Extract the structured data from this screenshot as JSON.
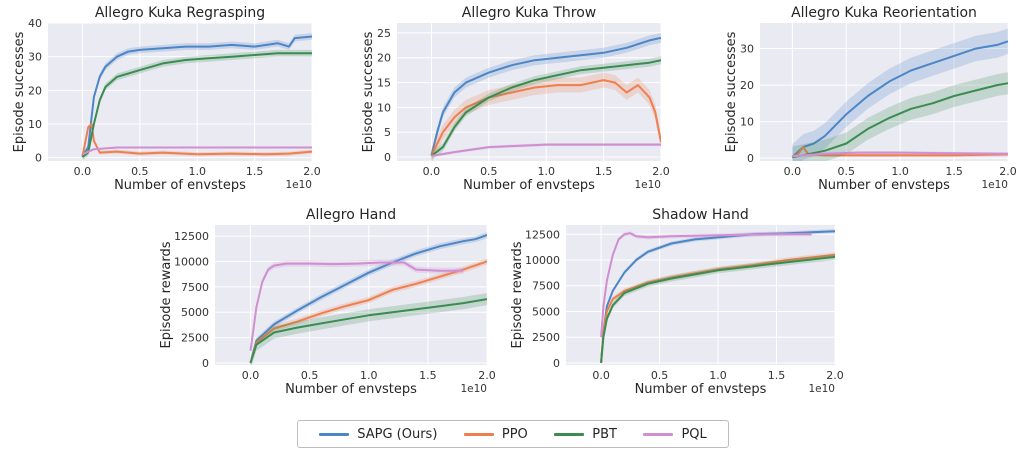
{
  "legend": {
    "items": [
      {
        "label": "SAPG (Ours)",
        "color": "#4c86c6"
      },
      {
        "label": "PPO",
        "color": "#ee7f4f"
      },
      {
        "label": "PBT",
        "color": "#3b8c51"
      },
      {
        "label": "PQL",
        "color": "#cf8fd0"
      }
    ]
  },
  "chart_data": [
    {
      "type": "line",
      "title": "Allegro Kuka Regrasping",
      "xlabel": "Number of envsteps",
      "ylabel": "Episode successes",
      "x_scale_label": "1e10",
      "xlim": [
        -0.3,
        2.0
      ],
      "ylim": [
        -1,
        40
      ],
      "xticks": [
        "0.0",
        "0.5",
        "1.0",
        "1.5",
        "2.0"
      ],
      "yticks": [
        "0",
        "10",
        "20",
        "30",
        "40"
      ],
      "x_tick_values": [
        0,
        0.5,
        1.0,
        1.5,
        2.0
      ],
      "y_tick_values": [
        0,
        10,
        20,
        30,
        40
      ],
      "grid": true,
      "series": [
        {
          "name": "SAPG (Ours)",
          "x": [
            0,
            0.05,
            0.1,
            0.15,
            0.2,
            0.3,
            0.4,
            0.5,
            0.7,
            0.9,
            1.1,
            1.3,
            1.5,
            1.7,
            1.8,
            1.85,
            2.0
          ],
          "y": [
            0.5,
            3,
            18,
            24,
            27,
            30,
            31.5,
            32,
            32.5,
            33,
            33,
            33.5,
            33,
            34,
            33,
            35.5,
            36
          ],
          "band": 1.0
        },
        {
          "name": "PPO",
          "x": [
            0,
            0.05,
            0.08,
            0.1,
            0.15,
            0.3,
            0.5,
            0.7,
            1.0,
            1.3,
            1.6,
            1.8,
            2.0
          ],
          "y": [
            0.3,
            9,
            10,
            5,
            1.5,
            1.8,
            1.2,
            1.5,
            1.0,
            1.2,
            1.0,
            1.2,
            1.8
          ],
          "band": 0.6
        },
        {
          "name": "PBT",
          "x": [
            0,
            0.05,
            0.1,
            0.15,
            0.2,
            0.3,
            0.5,
            0.7,
            0.9,
            1.1,
            1.3,
            1.5,
            1.7,
            1.9,
            2.0
          ],
          "y": [
            0.2,
            1.5,
            10,
            17,
            21,
            24,
            26,
            28,
            29,
            29.5,
            30,
            30.5,
            31,
            31,
            31
          ],
          "band": 1.0
        },
        {
          "name": "PQL",
          "x": [
            0,
            0.1,
            0.3,
            0.6,
            1.0,
            1.5,
            2.0
          ],
          "y": [
            1,
            2.5,
            3,
            3,
            3,
            3,
            3
          ],
          "band": 0.3
        }
      ]
    },
    {
      "type": "line",
      "title": "Allegro Kuka Throw",
      "xlabel": "Number of envsteps",
      "ylabel": "Episode successes",
      "x_scale_label": "1e10",
      "xlim": [
        -0.3,
        2.0
      ],
      "ylim": [
        -0.8,
        27
      ],
      "xticks": [
        "0.0",
        "0.5",
        "1.0",
        "1.5",
        "2.0"
      ],
      "yticks": [
        "0",
        "5",
        "10",
        "15",
        "20",
        "25"
      ],
      "x_tick_values": [
        0,
        0.5,
        1.0,
        1.5,
        2.0
      ],
      "y_tick_values": [
        0,
        5,
        10,
        15,
        20,
        25
      ],
      "grid": true,
      "series": [
        {
          "name": "SAPG (Ours)",
          "x": [
            0,
            0.05,
            0.1,
            0.2,
            0.3,
            0.5,
            0.7,
            0.9,
            1.1,
            1.3,
            1.5,
            1.7,
            1.9,
            2.0
          ],
          "y": [
            0.3,
            5,
            9,
            13,
            15,
            17,
            18.5,
            19.5,
            20,
            20.5,
            21,
            22,
            23.5,
            24
          ],
          "band": 1.0
        },
        {
          "name": "PPO",
          "x": [
            0,
            0.1,
            0.2,
            0.3,
            0.5,
            0.7,
            0.9,
            1.1,
            1.3,
            1.5,
            1.6,
            1.7,
            1.8,
            1.9,
            1.95,
            2.0
          ],
          "y": [
            0.3,
            5,
            8,
            10,
            12,
            13,
            14,
            14.5,
            14.5,
            15.5,
            15,
            13,
            14.5,
            12,
            9,
            3
          ],
          "band": 1.5
        },
        {
          "name": "PBT",
          "x": [
            0,
            0.1,
            0.2,
            0.3,
            0.5,
            0.7,
            0.9,
            1.1,
            1.3,
            1.5,
            1.7,
            1.9,
            2.0
          ],
          "y": [
            0.2,
            2,
            6,
            9,
            12,
            14,
            15.5,
            16.5,
            17.5,
            18,
            18.5,
            19,
            19.5
          ],
          "band": 0.8
        },
        {
          "name": "PQL",
          "x": [
            0,
            0.2,
            0.5,
            0.8,
            1.0,
            1.5,
            2.0
          ],
          "y": [
            0.2,
            1,
            2,
            2.3,
            2.5,
            2.5,
            2.5
          ],
          "band": 0.3
        }
      ]
    },
    {
      "type": "line",
      "title": "Allegro Kuka Reorientation",
      "xlabel": "Number of envsteps",
      "ylabel": "Episode successes",
      "x_scale_label": "1e10",
      "xlim": [
        -0.3,
        2.0
      ],
      "ylim": [
        -0.8,
        37
      ],
      "xticks": [
        "0.0",
        "0.5",
        "1.0",
        "1.5",
        "2.0"
      ],
      "yticks": [
        "0",
        "10",
        "20",
        "30"
      ],
      "x_tick_values": [
        0,
        0.5,
        1.0,
        1.5,
        2.0
      ],
      "y_tick_values": [
        0,
        10,
        20,
        30
      ],
      "grid": true,
      "series": [
        {
          "name": "SAPG (Ours)",
          "x": [
            0,
            0.1,
            0.2,
            0.3,
            0.5,
            0.7,
            0.9,
            1.1,
            1.3,
            1.5,
            1.7,
            1.9,
            2.0
          ],
          "y": [
            0.3,
            3,
            4,
            6,
            12,
            17,
            21,
            24,
            26,
            28,
            30,
            31,
            32
          ],
          "band": 3.5
        },
        {
          "name": "PPO",
          "x": [
            0,
            0.05,
            0.1,
            0.15,
            0.3,
            0.6,
            1.0,
            1.5,
            2.0
          ],
          "y": [
            0.2,
            1,
            3,
            1,
            0.8,
            0.8,
            0.8,
            0.8,
            1.0
          ],
          "band": 0.5
        },
        {
          "name": "PBT",
          "x": [
            0,
            0.1,
            0.3,
            0.5,
            0.7,
            0.9,
            1.1,
            1.3,
            1.5,
            1.7,
            1.9,
            2.0
          ],
          "y": [
            0.2,
            0.8,
            2,
            4,
            8,
            11,
            13.5,
            15,
            17,
            18.5,
            20,
            20.5
          ],
          "band": 3
        },
        {
          "name": "PQL",
          "x": [
            0,
            0.3,
            0.6,
            1.0,
            1.5,
            2.0
          ],
          "y": [
            0.5,
            1.2,
            1.5,
            1.5,
            1.3,
            1.2
          ],
          "band": 0.4
        }
      ]
    },
    {
      "type": "line",
      "title": "Allegro Hand",
      "xlabel": "Number of envsteps",
      "ylabel": "Episode rewards",
      "x_scale_label": "1e10",
      "xlim": [
        -0.3,
        2.0
      ],
      "ylim": [
        -200,
        13600
      ],
      "xticks": [
        "0.0",
        "0.5",
        "1.0",
        "1.5",
        "2.0"
      ],
      "yticks": [
        "0",
        "2500",
        "5000",
        "7500",
        "10000",
        "12500"
      ],
      "x_tick_values": [
        0,
        0.5,
        1.0,
        1.5,
        2.0
      ],
      "y_tick_values": [
        0,
        2500,
        5000,
        7500,
        10000,
        12500
      ],
      "grid": true,
      "series": [
        {
          "name": "SAPG (Ours)",
          "x": [
            0,
            0.05,
            0.2,
            0.4,
            0.6,
            0.8,
            1.0,
            1.2,
            1.4,
            1.6,
            1.8,
            1.9,
            2.0
          ],
          "y": [
            0,
            2200,
            3800,
            5200,
            6500,
            7700,
            8900,
            9900,
            10800,
            11500,
            12000,
            12200,
            12600
          ],
          "band": 300
        },
        {
          "name": "PPO",
          "x": [
            0,
            0.05,
            0.2,
            0.4,
            0.6,
            0.8,
            1.0,
            1.2,
            1.4,
            1.6,
            1.8,
            2.0
          ],
          "y": [
            0,
            2000,
            3400,
            4100,
            4900,
            5600,
            6200,
            7200,
            7800,
            8500,
            9200,
            10000
          ],
          "band": 300
        },
        {
          "name": "PBT",
          "x": [
            0,
            0.05,
            0.2,
            0.4,
            0.6,
            0.8,
            1.0,
            1.2,
            1.4,
            1.6,
            1.8,
            2.0
          ],
          "y": [
            0,
            1800,
            3000,
            3500,
            3900,
            4300,
            4700,
            5000,
            5300,
            5600,
            5900,
            6300
          ],
          "band": 600
        },
        {
          "name": "PQL",
          "x": [
            0,
            0.05,
            0.1,
            0.15,
            0.2,
            0.3,
            0.5,
            0.7,
            0.9,
            1.1,
            1.3,
            1.4,
            1.6,
            1.8
          ],
          "y": [
            1200,
            5500,
            8000,
            9200,
            9600,
            9800,
            9800,
            9750,
            9800,
            9900,
            9900,
            9200,
            9100,
            9100
          ],
          "band": 300
        }
      ]
    },
    {
      "type": "line",
      "title": "Shadow Hand",
      "xlabel": "Number of envsteps",
      "ylabel": "Episode rewards",
      "x_scale_label": "1e10",
      "xlim": [
        -0.3,
        2.0
      ],
      "ylim": [
        -200,
        13400
      ],
      "xticks": [
        "0.0",
        "0.5",
        "1.0",
        "1.5",
        "2.0"
      ],
      "yticks": [
        "0",
        "2500",
        "5000",
        "7500",
        "10000",
        "12500"
      ],
      "x_tick_values": [
        0,
        0.5,
        1.0,
        1.5,
        2.0
      ],
      "y_tick_values": [
        0,
        2500,
        5000,
        7500,
        10000,
        12500
      ],
      "grid": true,
      "series": [
        {
          "name": "SAPG (Ours)",
          "x": [
            0,
            0.02,
            0.05,
            0.1,
            0.2,
            0.3,
            0.4,
            0.6,
            0.8,
            1.0,
            1.3,
            1.6,
            2.0
          ],
          "y": [
            0,
            3000,
            5500,
            7000,
            8800,
            10000,
            10800,
            11600,
            12000,
            12200,
            12500,
            12600,
            12800
          ],
          "band": 200
        },
        {
          "name": "PPO",
          "x": [
            0,
            0.02,
            0.05,
            0.1,
            0.2,
            0.4,
            0.6,
            0.8,
            1.0,
            1.3,
            1.6,
            2.0
          ],
          "y": [
            0,
            3000,
            5000,
            6200,
            7000,
            7800,
            8300,
            8700,
            9100,
            9500,
            10000,
            10500
          ],
          "band": 250
        },
        {
          "name": "PBT",
          "x": [
            0,
            0.02,
            0.05,
            0.1,
            0.2,
            0.4,
            0.6,
            0.8,
            1.0,
            1.3,
            1.6,
            2.0
          ],
          "y": [
            0,
            2500,
            4300,
            5600,
            6800,
            7700,
            8200,
            8600,
            9000,
            9400,
            9800,
            10300
          ],
          "band": 300
        },
        {
          "name": "PQL",
          "x": [
            0,
            0.02,
            0.05,
            0.1,
            0.15,
            0.2,
            0.25,
            0.3,
            0.4,
            0.6,
            1.0,
            1.4,
            1.8
          ],
          "y": [
            2500,
            5500,
            8000,
            10500,
            12000,
            12500,
            12600,
            12300,
            12200,
            12300,
            12400,
            12500,
            12500
          ],
          "band": 200
        }
      ]
    }
  ]
}
